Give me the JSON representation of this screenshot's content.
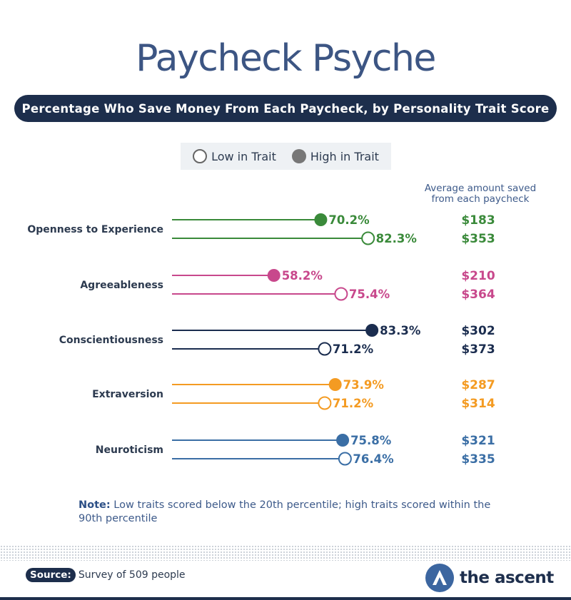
{
  "title": "Paycheck Psyche",
  "subtitle": "Percentage Who Save Money From Each Paycheck, by Personality Trait Score",
  "legend": {
    "low": "Low in Trait",
    "high": "High in Trait"
  },
  "amount_header_line1": "Average amount saved",
  "amount_header_line2": "from each paycheck",
  "chart_data": {
    "type": "dot-plot",
    "title": "Percentage Who Save Money From Each Paycheck, by Personality Trait Score",
    "categories": [
      "Openness to Experience",
      "Agreeableness",
      "Conscientiousness",
      "Extraversion",
      "Neuroticism"
    ],
    "colors": [
      "#3a8a3a",
      "#c8488c",
      "#1b2d4f",
      "#f49b22",
      "#3a6ea5"
    ],
    "series": [
      {
        "name": "High in Trait",
        "values": [
          70.2,
          58.2,
          83.3,
          73.9,
          75.8
        ],
        "amounts": [
          "$183",
          "$210",
          "$302",
          "$287",
          "$321"
        ],
        "labels": [
          "70.2%",
          "58.2%",
          "83.3%",
          "73.9%",
          "75.8%"
        ]
      },
      {
        "name": "Low in Trait",
        "values": [
          82.3,
          75.4,
          71.2,
          71.2,
          76.4
        ],
        "amounts": [
          "$353",
          "$364",
          "$373",
          "$314",
          "$335"
        ],
        "labels": [
          "82.3%",
          "75.4%",
          "71.2%",
          "71.2%",
          "76.4%"
        ]
      }
    ],
    "grid": false,
    "legend_position": "top-center"
  },
  "note_label": "Note:",
  "note_text": "Low traits scored below the 20th percentile; high traits scored within the 90th percentile",
  "source_label": "Source:",
  "source_text": "Survey of 509 people",
  "logo_text": "the ascent"
}
